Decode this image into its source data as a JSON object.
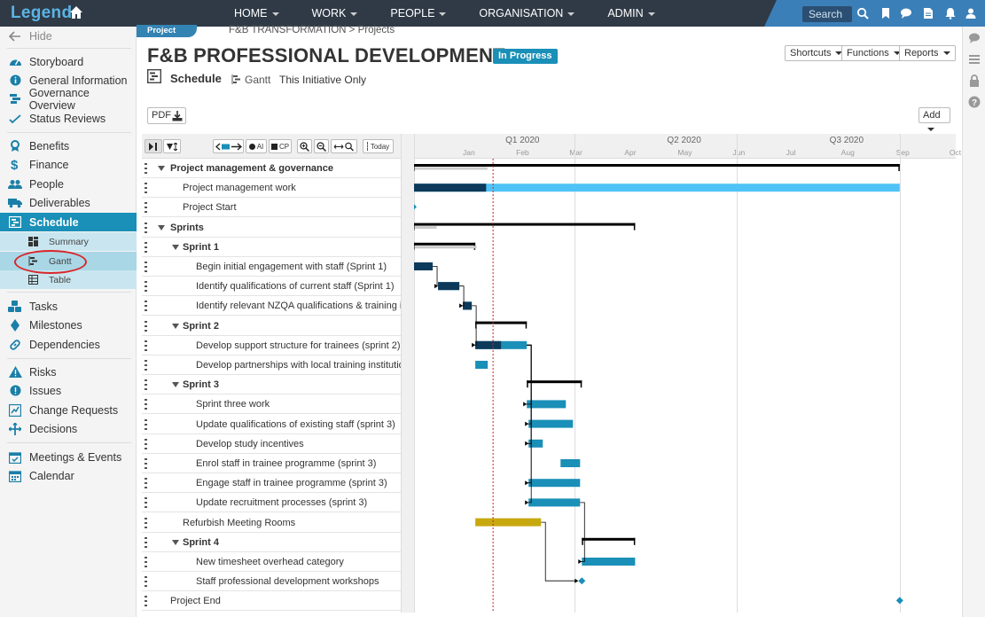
{
  "app": {
    "logo": "Legend"
  },
  "topnav": {
    "items": [
      {
        "label": "HOME"
      },
      {
        "label": "WORK"
      },
      {
        "label": "PEOPLE"
      },
      {
        "label": "ORGANISATION"
      },
      {
        "label": "ADMIN"
      }
    ],
    "search_label": "Search"
  },
  "sidebar": {
    "hide_label": "Hide",
    "items": [
      {
        "label": "Storyboard",
        "icon": "dashboard-icon"
      },
      {
        "label": "General Information",
        "icon": "info-icon"
      },
      {
        "label": "Governance Overview",
        "icon": "governance-icon"
      },
      {
        "label": "Status Reviews",
        "icon": "check-trend-icon"
      },
      {
        "label": "Benefits",
        "icon": "award-icon"
      },
      {
        "label": "Finance",
        "icon": "dollar-icon"
      },
      {
        "label": "People",
        "icon": "users-icon"
      },
      {
        "label": "Deliverables",
        "icon": "truck-icon"
      },
      {
        "label": "Schedule",
        "icon": "schedule-icon"
      },
      {
        "label": "Tasks",
        "icon": "cubes-icon"
      },
      {
        "label": "Milestones",
        "icon": "milestone-icon"
      },
      {
        "label": "Dependencies",
        "icon": "link-icon"
      },
      {
        "label": "Risks",
        "icon": "warning-icon"
      },
      {
        "label": "Issues",
        "icon": "alert-icon"
      },
      {
        "label": "Change Requests",
        "icon": "change-icon"
      },
      {
        "label": "Decisions",
        "icon": "decision-icon"
      },
      {
        "label": "Meetings & Events",
        "icon": "calendar-check-icon"
      },
      {
        "label": "Calendar",
        "icon": "calendar-icon"
      }
    ],
    "schedule_sub": [
      {
        "label": "Summary"
      },
      {
        "label": "Gantt"
      },
      {
        "label": "Table"
      }
    ]
  },
  "header": {
    "project_tab": "Project",
    "breadcrumb": "F&B TRANSFORMATION > Projects",
    "title": "F&B PROFESSIONAL DEVELOPMENT",
    "status": "In Progress",
    "section": "Schedule",
    "view": "Gantt",
    "filter": "This Initiative Only",
    "buttons": {
      "shortcuts": "Shortcuts",
      "functions": "Functions",
      "reports": "Reports"
    },
    "pdf": "PDF",
    "add": "Add"
  },
  "gantt": {
    "toolbar": {
      "ai": "AI",
      "cp": "CP",
      "today": "Today"
    },
    "quarters": [
      "Q1 2020",
      "Q2 2020",
      "Q3 2020"
    ],
    "months": [
      "Jan",
      "Feb",
      "Mar",
      "Apr",
      "May",
      "Jun",
      "Jul",
      "Aug",
      "Sep",
      "Oct"
    ],
    "rows": [
      {
        "label": "Project management & governance",
        "level": 0,
        "bold": true,
        "collapsible": true
      },
      {
        "label": "Project management work",
        "level": 1,
        "bold": false,
        "collapsible": false
      },
      {
        "label": "Project Start",
        "level": 1,
        "bold": false,
        "collapsible": false
      },
      {
        "label": "Sprints",
        "level": 0,
        "bold": true,
        "collapsible": true
      },
      {
        "label": "Sprint 1",
        "level": 1,
        "bold": true,
        "collapsible": true
      },
      {
        "label": "Begin initial engagement with staff (Sprint 1)",
        "level": 2,
        "bold": false,
        "collapsible": false
      },
      {
        "label": "Identify qualifications of current staff (Sprint 1)",
        "level": 2,
        "bold": false,
        "collapsible": false
      },
      {
        "label": "Identify relevant NZQA qualifications & training ins",
        "level": 2,
        "bold": false,
        "collapsible": false
      },
      {
        "label": "Sprint 2",
        "level": 1,
        "bold": true,
        "collapsible": true
      },
      {
        "label": "Develop support structure for trainees (sprint 2)",
        "level": 2,
        "bold": false,
        "collapsible": false
      },
      {
        "label": "Develop partnerships with local training institutions",
        "level": 2,
        "bold": false,
        "collapsible": false
      },
      {
        "label": "Sprint 3",
        "level": 1,
        "bold": true,
        "collapsible": true
      },
      {
        "label": "Sprint three work",
        "level": 2,
        "bold": false,
        "collapsible": false
      },
      {
        "label": "Update qualifications of existing staff (sprint 3)",
        "level": 2,
        "bold": false,
        "collapsible": false
      },
      {
        "label": "Develop study incentives",
        "level": 2,
        "bold": false,
        "collapsible": false
      },
      {
        "label": "Enrol staff in trainee programme (sprint 3)",
        "level": 2,
        "bold": false,
        "collapsible": false
      },
      {
        "label": "Engage staff in trainee programme (sprint 3)",
        "level": 2,
        "bold": false,
        "collapsible": false
      },
      {
        "label": "Update recruitment processes (sprint 3)",
        "level": 2,
        "bold": false,
        "collapsible": false
      },
      {
        "label": "Refurbish Meeting Rooms",
        "level": 1,
        "bold": false,
        "collapsible": false
      },
      {
        "label": "Sprint 4",
        "level": 1,
        "bold": true,
        "collapsible": true
      },
      {
        "label": "New timesheet overhead category",
        "level": 2,
        "bold": false,
        "collapsible": false
      },
      {
        "label": "Staff professional development workshops",
        "level": 2,
        "bold": false,
        "collapsible": false
      },
      {
        "label": "Project End",
        "level": 0,
        "bold": false,
        "collapsible": false
      }
    ],
    "bars": [
      {
        "row": 0,
        "type": "summary",
        "start": "2020-01-01",
        "end": "2020-10-01",
        "progress": 0.15
      },
      {
        "row": 1,
        "type": "task",
        "start": "2020-01-01",
        "end": "2020-10-01",
        "progress": 0.15,
        "color": "#4fc3f7"
      },
      {
        "row": 2,
        "type": "milestone",
        "date": "2020-01-01"
      },
      {
        "row": 3,
        "type": "summary",
        "start": "2020-01-01",
        "end": "2020-05-05",
        "progress": 0.1
      },
      {
        "row": 4,
        "type": "summary",
        "start": "2020-01-01",
        "end": "2020-02-05",
        "progress": 1.0
      },
      {
        "row": 5,
        "type": "task",
        "start": "2020-01-01",
        "end": "2020-01-12",
        "progress": 1.0,
        "color": "#1a8fb7"
      },
      {
        "row": 6,
        "type": "task",
        "start": "2020-01-15",
        "end": "2020-01-27",
        "progress": 1.0,
        "color": "#1a8fb7"
      },
      {
        "row": 7,
        "type": "task",
        "start": "2020-01-29",
        "end": "2020-02-03",
        "progress": 1.0,
        "color": "#1a8fb7"
      },
      {
        "row": 8,
        "type": "summary",
        "start": "2020-02-05",
        "end": "2020-03-05",
        "progress": 0
      },
      {
        "row": 9,
        "type": "task",
        "start": "2020-02-05",
        "end": "2020-03-05",
        "progress": 0.5,
        "color": "#1a8fb7"
      },
      {
        "row": 10,
        "type": "task",
        "start": "2020-02-05",
        "end": "2020-02-12",
        "progress": 0,
        "color": "#1a8fb7"
      },
      {
        "row": 11,
        "type": "summary",
        "start": "2020-03-05",
        "end": "2020-04-05",
        "progress": 0
      },
      {
        "row": 12,
        "type": "task",
        "start": "2020-03-05",
        "end": "2020-03-27",
        "progress": 0,
        "color": "#1a8fb7"
      },
      {
        "row": 13,
        "type": "task",
        "start": "2020-03-06",
        "end": "2020-03-31",
        "progress": 0,
        "color": "#1a8fb7"
      },
      {
        "row": 14,
        "type": "task",
        "start": "2020-03-06",
        "end": "2020-03-14",
        "progress": 0,
        "color": "#1a8fb7"
      },
      {
        "row": 15,
        "type": "task",
        "start": "2020-03-24",
        "end": "2020-04-04",
        "progress": 0,
        "color": "#1a8fb7"
      },
      {
        "row": 16,
        "type": "task",
        "start": "2020-03-06",
        "end": "2020-04-04",
        "progress": 0,
        "color": "#1a8fb7"
      },
      {
        "row": 17,
        "type": "task",
        "start": "2020-03-06",
        "end": "2020-04-04",
        "progress": 0,
        "color": "#1a8fb7"
      },
      {
        "row": 18,
        "type": "task",
        "start": "2020-02-05",
        "end": "2020-03-13",
        "progress": 0,
        "color": "#c8a80f"
      },
      {
        "row": 19,
        "type": "summary",
        "start": "2020-04-05",
        "end": "2020-05-05",
        "progress": 0
      },
      {
        "row": 20,
        "type": "task",
        "start": "2020-04-05",
        "end": "2020-05-05",
        "progress": 0,
        "color": "#1a8fb7"
      },
      {
        "row": 21,
        "type": "milestone",
        "date": "2020-04-05"
      },
      {
        "row": 22,
        "type": "milestone",
        "date": "2020-10-01"
      }
    ],
    "links": [
      {
        "from": 5,
        "to": 6
      },
      {
        "from": 6,
        "to": 7
      },
      {
        "from": 7,
        "to": 9
      },
      {
        "from": 9,
        "to": 12
      },
      {
        "from": 9,
        "to": 13
      },
      {
        "from": 9,
        "to": 14
      },
      {
        "from": 9,
        "to": 16
      },
      {
        "from": 9,
        "to": 17
      },
      {
        "from": 17,
        "to": 20
      },
      {
        "from": 18,
        "to": 21
      }
    ],
    "today": "2020-02-15",
    "colors": {
      "summary": "#000000",
      "summary_progress": "#cccccc",
      "task_progress": "#0d3a5a",
      "link": "#000000",
      "today_line": "#cc2222",
      "milestone": "#1a8fb7"
    }
  }
}
